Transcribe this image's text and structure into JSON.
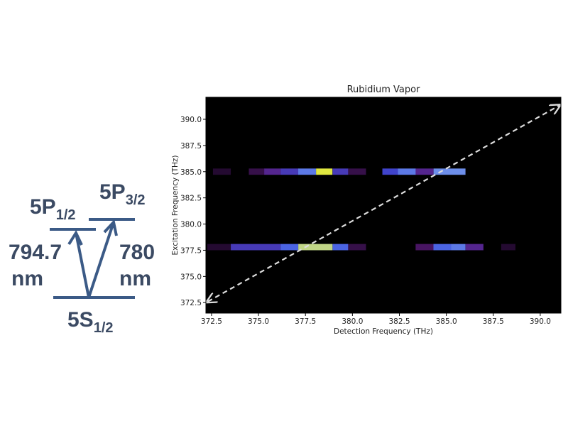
{
  "diagram": {
    "levels": [
      {
        "label": "5P",
        "subscript": "1/2"
      },
      {
        "label": "5P",
        "subscript": "3/2"
      },
      {
        "label": "5S",
        "subscript": "1/2"
      }
    ],
    "transitions": [
      {
        "wavelength": "794.7",
        "unit": "nm"
      },
      {
        "wavelength": "780",
        "unit": "nm"
      }
    ]
  },
  "chart_data": {
    "type": "heatmap",
    "title": "Rubidium Vapor",
    "x_label": "Detection Frequency (THz)",
    "y_label": "Excitation Frequency (THz)",
    "x": [
      373.05,
      374.9,
      375.74,
      376.65,
      377.59,
      378.5,
      379.36,
      380.25,
      382.01,
      382.9,
      383.84,
      385.17,
      372.9,
      374.85,
      376.65,
      378.03,
      379.36,
      380.25,
      383.84,
      384.79,
      385.64,
      386.5,
      388.3
    ],
    "width": [
      0.95,
      0.83,
      0.87,
      0.95,
      0.95,
      0.87,
      0.83,
      0.95,
      0.83,
      0.95,
      0.95,
      1.7,
      1.25,
      2.65,
      0.95,
      1.82,
      0.83,
      0.95,
      0.95,
      0.95,
      0.76,
      0.95,
      0.76
    ],
    "y": [
      385,
      385,
      385,
      385,
      385,
      385,
      385,
      385,
      385,
      385,
      385,
      385,
      377.8,
      377.8,
      377.8,
      377.8,
      377.8,
      377.8,
      377.8,
      377.8,
      377.8,
      377.8,
      377.8
    ],
    "values": [
      0.1,
      0.15,
      0.3,
      0.4,
      0.6,
      1.0,
      0.4,
      0.15,
      0.45,
      0.6,
      0.3,
      0.65,
      0.1,
      0.4,
      0.55,
      0.9,
      0.55,
      0.15,
      0.2,
      0.55,
      0.6,
      0.3,
      0.1
    ],
    "cell_height": 0.6,
    "colormap": [
      "#000000",
      "#5a1a7a",
      "#3a4fe0",
      "#8fb8f0",
      "#e0e840"
    ],
    "reference_line": {
      "x": [
        372.3,
        391.0
      ],
      "y": [
        372.6,
        391.3
      ]
    },
    "xlim": [
      372.2,
      391.1
    ],
    "ylim": [
      371.5,
      392.1
    ],
    "xticks": [
      372.5,
      {
        "value": 375,
        "label": "375.0"
      },
      377.5,
      {
        "value": 380,
        "label": "380.0"
      },
      382.5,
      {
        "value": 385,
        "label": "385.0"
      },
      387.5,
      {
        "value": 390,
        "label": "390.0"
      }
    ],
    "yticks": [
      372.5,
      {
        "value": 375,
        "label": "375.0"
      },
      377.5,
      {
        "value": 380,
        "label": "380.0"
      },
      382.5,
      {
        "value": 385,
        "label": "385.0"
      },
      387.5,
      {
        "value": 390,
        "label": "390.0"
      }
    ]
  }
}
